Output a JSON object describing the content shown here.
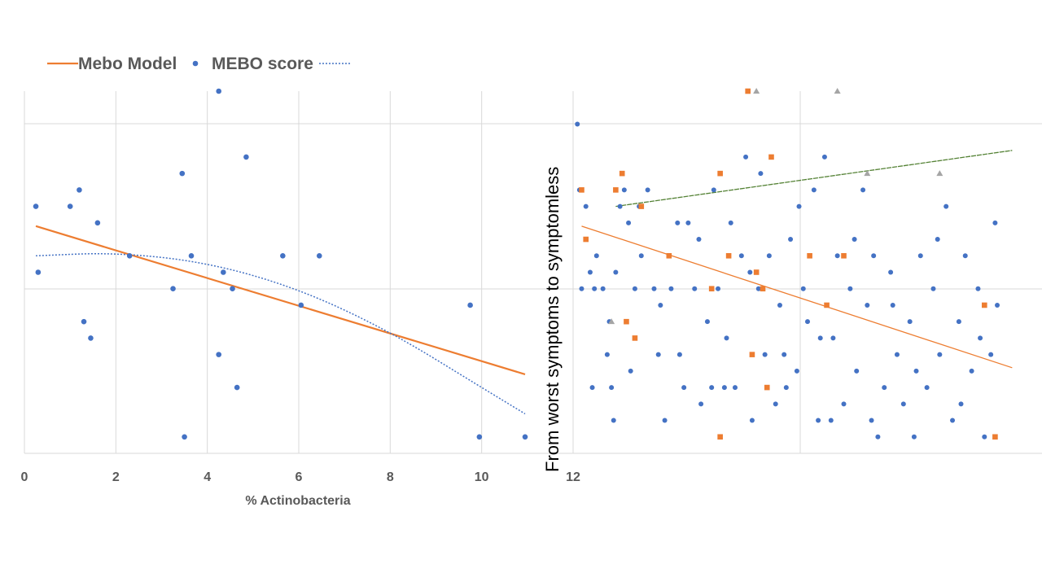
{
  "colors": {
    "orange": "#ED7D31",
    "blue": "#4472C4",
    "gray": "#A5A5A5",
    "green": "#548235",
    "grid": "#D9D9D9",
    "text": "#595959"
  },
  "side_title": "From worst symptoms  to symptomless",
  "chart_data": [
    {
      "type": "scatter",
      "title": "",
      "xlabel": "% Actinobacteria",
      "ylabel": "",
      "xlim": [
        0,
        12
      ],
      "ylim": [
        0,
        11
      ],
      "xticks": [
        0,
        2,
        4,
        6,
        8,
        10,
        12
      ],
      "grid": true,
      "legend_position": "top-left",
      "legend": [
        {
          "label": "Mebo Model",
          "marker": "line",
          "color": "#ED7D31"
        },
        {
          "label": "MEBO score",
          "marker": "dot",
          "color": "#4472C4"
        },
        {
          "label": "",
          "marker": "dotted-line",
          "color": "#4472C4"
        }
      ],
      "series": [
        {
          "name": "MEBO score",
          "color": "#4472C4",
          "points": [
            [
              0.25,
              7.5
            ],
            [
              0.3,
              5.5
            ],
            [
              1.0,
              7.5
            ],
            [
              1.2,
              8.0
            ],
            [
              1.3,
              4.0
            ],
            [
              1.45,
              3.5
            ],
            [
              1.6,
              7.0
            ],
            [
              2.3,
              6.0
            ],
            [
              3.25,
              5.0
            ],
            [
              3.45,
              8.5
            ],
            [
              3.5,
              0.5
            ],
            [
              3.65,
              6.0
            ],
            [
              4.25,
              11.0
            ],
            [
              4.25,
              3.0
            ],
            [
              4.35,
              5.5
            ],
            [
              4.55,
              5.0
            ],
            [
              4.65,
              2.0
            ],
            [
              4.85,
              9.0
            ],
            [
              5.65,
              6.0
            ],
            [
              6.05,
              4.5
            ],
            [
              6.45,
              6.0
            ],
            [
              9.75,
              4.5
            ],
            [
              9.95,
              0.5
            ],
            [
              10.95,
              0.5
            ]
          ]
        }
      ],
      "trendlines": [
        {
          "name": "Mebo Model",
          "kind": "linear",
          "color": "#ED7D31",
          "x": [
            0.25,
            10.95
          ],
          "y": [
            6.9,
            2.4
          ]
        },
        {
          "name": "",
          "kind": "polynomial",
          "color": "#4472C4",
          "x": [
            0.25,
            2.0,
            4.0,
            6.0,
            8.0,
            10.0,
            10.95
          ],
          "y": [
            6.0,
            6.1,
            5.8,
            5.0,
            3.7,
            2.0,
            1.2
          ]
        }
      ]
    },
    {
      "type": "scatter",
      "title": "",
      "xlabel": "",
      "ylabel": "From worst symptoms  to symptomless",
      "grid": true,
      "series": [
        {
          "name": "",
          "marker": "dot",
          "color": "#4472C4",
          "points": [
            [
              0.1,
              10
            ],
            [
              0.2,
              5
            ],
            [
              0.3,
              7.5
            ],
            [
              0.4,
              5.5
            ],
            [
              0.5,
              5
            ],
            [
              0.7,
              5
            ],
            [
              0.8,
              3
            ],
            [
              0.9,
              2
            ],
            [
              0.95,
              1
            ],
            [
              1.0,
              5.5
            ],
            [
              1.1,
              7.5
            ],
            [
              1.2,
              8
            ],
            [
              1.3,
              7
            ],
            [
              1.45,
              5
            ],
            [
              1.6,
              6
            ],
            [
              1.75,
              8
            ],
            [
              1.9,
              5
            ],
            [
              2.0,
              3
            ],
            [
              2.15,
              1
            ],
            [
              2.3,
              5
            ],
            [
              2.45,
              7
            ],
            [
              2.6,
              2
            ],
            [
              2.7,
              7
            ],
            [
              2.85,
              5
            ],
            [
              3.0,
              1.5
            ],
            [
              3.15,
              4
            ],
            [
              3.3,
              8
            ],
            [
              3.4,
              5
            ],
            [
              3.55,
              2
            ],
            [
              3.7,
              7
            ],
            [
              3.8,
              2
            ],
            [
              3.95,
              6
            ],
            [
              4.05,
              9
            ],
            [
              4.2,
              1
            ],
            [
              4.35,
              5
            ],
            [
              4.5,
              3
            ],
            [
              4.6,
              6
            ],
            [
              4.75,
              1.5
            ],
            [
              4.85,
              4.5
            ],
            [
              5.0,
              2
            ],
            [
              5.1,
              6.5
            ],
            [
              5.25,
              2.5
            ],
            [
              5.4,
              5
            ],
            [
              5.5,
              4
            ],
            [
              5.65,
              8
            ],
            [
              5.8,
              3.5
            ],
            [
              5.9,
              9
            ],
            [
              6.05,
              1
            ],
            [
              6.2,
              6
            ],
            [
              6.35,
              1.5
            ],
            [
              6.5,
              5
            ],
            [
              6.65,
              2.5
            ],
            [
              6.8,
              8
            ],
            [
              6.9,
              4.5
            ],
            [
              7.05,
              6
            ],
            [
              7.15,
              0.5
            ],
            [
              7.3,
              2
            ],
            [
              7.45,
              5.5
            ],
            [
              7.6,
              3
            ],
            [
              7.75,
              1.5
            ],
            [
              7.9,
              4
            ],
            [
              8.0,
              0.5
            ],
            [
              8.15,
              6
            ],
            [
              8.3,
              2
            ],
            [
              8.45,
              5
            ],
            [
              8.6,
              3
            ],
            [
              8.75,
              7.5
            ],
            [
              8.9,
              1
            ],
            [
              9.05,
              4
            ],
            [
              9.2,
              6
            ],
            [
              9.35,
              2.5
            ],
            [
              9.5,
              5
            ],
            [
              9.65,
              0.5
            ],
            [
              9.8,
              3
            ],
            [
              9.9,
              7
            ],
            [
              0.15,
              8
            ],
            [
              0.55,
              6
            ],
            [
              0.85,
              4
            ],
            [
              1.35,
              2.5
            ],
            [
              1.55,
              7.5
            ],
            [
              2.05,
              4.5
            ],
            [
              2.5,
              3
            ],
            [
              2.95,
              6.5
            ],
            [
              3.25,
              2
            ],
            [
              3.6,
              3.5
            ],
            [
              4.15,
              5.5
            ],
            [
              4.4,
              8.5
            ],
            [
              4.95,
              3
            ],
            [
              5.3,
              7.5
            ],
            [
              5.75,
              1
            ],
            [
              6.1,
              3.5
            ],
            [
              6.6,
              6.5
            ],
            [
              7.0,
              1
            ],
            [
              7.5,
              4.5
            ],
            [
              8.05,
              2.5
            ],
            [
              8.55,
              6.5
            ],
            [
              9.1,
              1.5
            ],
            [
              9.55,
              3.5
            ],
            [
              9.95,
              4.5
            ],
            [
              0.45,
              2
            ]
          ]
        },
        {
          "name": "",
          "marker": "square",
          "color": "#ED7D31",
          "points": [
            [
              0.2,
              8
            ],
            [
              0.3,
              6.5
            ],
            [
              1.0,
              8
            ],
            [
              1.15,
              8.5
            ],
            [
              1.25,
              4
            ],
            [
              1.45,
              3.5
            ],
            [
              1.6,
              7.5
            ],
            [
              2.25,
              6
            ],
            [
              3.25,
              5
            ],
            [
              3.45,
              8.5
            ],
            [
              3.45,
              0.5
            ],
            [
              3.65,
              6
            ],
            [
              4.1,
              11
            ],
            [
              4.2,
              3
            ],
            [
              4.3,
              5.5
            ],
            [
              4.45,
              5
            ],
            [
              4.55,
              2
            ],
            [
              4.65,
              9
            ],
            [
              5.55,
              6
            ],
            [
              5.95,
              4.5
            ],
            [
              6.35,
              6
            ],
            [
              9.65,
              4.5
            ],
            [
              9.9,
              0.5
            ]
          ]
        },
        {
          "name": "",
          "marker": "triangle",
          "color": "#A5A5A5",
          "points": [
            [
              0.9,
              4
            ],
            [
              4.3,
              11
            ],
            [
              6.2,
              11
            ],
            [
              6.9,
              8.5
            ],
            [
              8.6,
              8.5
            ]
          ]
        }
      ],
      "trendlines": [
        {
          "name": "",
          "kind": "linear",
          "color": "#ED7D31",
          "x": [
            0.2,
            10.3
          ],
          "y": [
            6.9,
            2.6
          ]
        },
        {
          "name": "",
          "kind": "linear",
          "color": "#548235",
          "x": [
            1.0,
            10.3
          ],
          "y": [
            7.5,
            9.2
          ]
        }
      ]
    }
  ]
}
